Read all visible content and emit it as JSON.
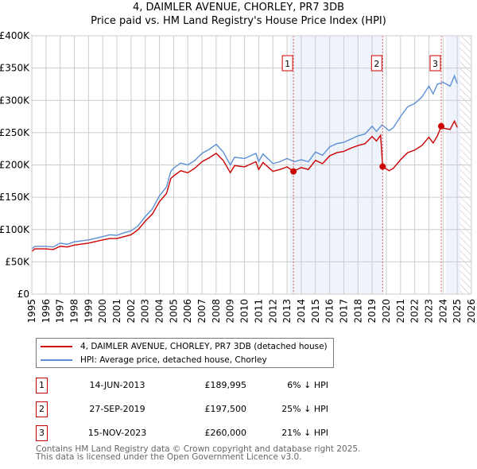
{
  "chart_data": {
    "type": "line",
    "title": "4, DAIMLER AVENUE, CHORLEY, PR7 3DB",
    "subtitle": "Price paid vs. HM Land Registry's House Price Index (HPI)",
    "xlim": [
      1995,
      2026
    ],
    "ylim": [
      0,
      400000
    ],
    "yticks": [
      {
        "v": 0,
        "label": "£0"
      },
      {
        "v": 50000,
        "label": "£50K"
      },
      {
        "v": 100000,
        "label": "£100K"
      },
      {
        "v": 150000,
        "label": "£150K"
      },
      {
        "v": 200000,
        "label": "£200K"
      },
      {
        "v": 250000,
        "label": "£250K"
      },
      {
        "v": 300000,
        "label": "£300K"
      },
      {
        "v": 350000,
        "label": "£350K"
      },
      {
        "v": 400000,
        "label": "£400K"
      }
    ],
    "xticks": [
      "1995",
      "1996",
      "1997",
      "1998",
      "1999",
      "2000",
      "2001",
      "2002",
      "2003",
      "2004",
      "2005",
      "2006",
      "2007",
      "2008",
      "2009",
      "2010",
      "2011",
      "2012",
      "2013",
      "2014",
      "2015",
      "2016",
      "2017",
      "2018",
      "2019",
      "2020",
      "2021",
      "2022",
      "2023",
      "2024",
      "2025",
      "2026"
    ],
    "grid": true,
    "shaded": [
      [
        2013.2,
        2019.8
      ],
      [
        2024.2,
        2025.2
      ]
    ],
    "hatched_from": 2025.2,
    "series": [
      {
        "name": "4, DAIMLER AVENUE, CHORLEY, PR7 3DB (detached house)",
        "color": "#cc0000",
        "x": [
          1995,
          1995.2,
          1996,
          1996.5,
          1997,
          1997.5,
          1998,
          1999,
          2000,
          2000.5,
          2001,
          2001.5,
          2002,
          2002.5,
          2003,
          2003.5,
          2004,
          2004.5,
          2004.8,
          2005,
          2005.5,
          2006,
          2006.5,
          2007,
          2007.5,
          2008,
          2008.5,
          2009,
          2009.3,
          2010,
          2010.8,
          2011,
          2011.3,
          2012,
          2012.5,
          2013,
          2013.45,
          2014,
          2014.5,
          2015,
          2015.5,
          2016,
          2016.5,
          2017,
          2017.5,
          2018,
          2018.5,
          2019,
          2019.3,
          2019.6,
          2019.74,
          2020.2,
          2020.5,
          2021,
          2021.5,
          2022,
          2022.5,
          2023,
          2023.3,
          2023.6,
          2023.87,
          2024,
          2024.5,
          2024.8,
          2025
        ],
        "y": [
          66,
          70,
          70,
          69,
          74,
          73,
          76,
          79,
          84,
          86,
          86,
          89,
          92,
          100,
          113,
          124,
          143,
          156,
          179,
          183,
          191,
          188,
          195,
          205,
          211,
          218,
          207,
          188,
          199,
          197,
          205,
          193,
          204,
          190,
          193,
          197,
          190,
          196,
          193,
          207,
          202,
          214,
          219,
          221,
          226,
          230,
          233,
          244,
          237,
          246,
          197.5,
          191,
          195,
          208,
          219,
          223,
          230,
          243,
          234,
          245,
          260,
          257,
          255,
          268,
          258
        ]
      },
      {
        "name": "HPI: Average price, detached house, Chorley",
        "color": "#5b8fd4",
        "x": [
          1995,
          1995.2,
          1996,
          1996.5,
          1997,
          1997.5,
          1998,
          1999,
          2000,
          2000.5,
          2001,
          2001.5,
          2002,
          2002.5,
          2003,
          2003.5,
          2004,
          2004.5,
          2004.8,
          2005,
          2005.5,
          2006,
          2006.5,
          2007,
          2007.5,
          2008,
          2008.5,
          2009,
          2009.3,
          2010,
          2010.8,
          2011,
          2011.3,
          2012,
          2012.5,
          2013,
          2013.5,
          2014,
          2014.5,
          2015,
          2015.5,
          2016,
          2016.5,
          2017,
          2017.5,
          2018,
          2018.5,
          2019,
          2019.3,
          2019.7,
          2020.2,
          2020.5,
          2021,
          2021.5,
          2022,
          2022.5,
          2023,
          2023.3,
          2023.6,
          2024,
          2024.5,
          2024.8,
          2025
        ],
        "y": [
          70,
          74,
          74,
          73,
          79,
          77,
          81,
          84,
          89,
          92,
          91,
          95,
          98,
          106,
          120,
          132,
          152,
          166,
          190,
          195,
          203,
          200,
          207,
          218,
          224,
          232,
          220,
          200,
          212,
          210,
          218,
          205,
          217,
          202,
          205,
          210,
          205,
          208,
          205,
          220,
          215,
          228,
          233,
          235,
          240,
          245,
          248,
          260,
          252,
          262,
          253,
          258,
          275,
          290,
          295,
          305,
          322,
          310,
          325,
          328,
          322,
          338,
          326
        ]
      }
    ],
    "y_units": "thousands GBP",
    "sales": [
      {
        "n": "1",
        "x": 2013.45,
        "date": "14-JUN-2013",
        "price": "£189,995",
        "value": 189995,
        "hpi": "6% ↓ HPI"
      },
      {
        "n": "2",
        "x": 2019.74,
        "date": "27-SEP-2019",
        "price": "£197,500",
        "value": 197500,
        "hpi": "25% ↓ HPI"
      },
      {
        "n": "3",
        "x": 2023.87,
        "date": "15-NOV-2023",
        "price": "£260,000",
        "value": 260000,
        "hpi": "21% ↓ HPI"
      }
    ]
  },
  "footer": {
    "line1": "Contains HM Land Registry data © Crown copyright and database right 2025.",
    "line2": "This data is licensed under the Open Government Licence v3.0."
  }
}
